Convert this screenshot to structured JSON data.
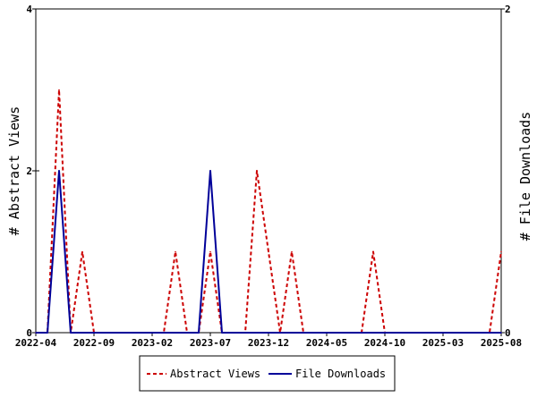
{
  "chart_data": {
    "type": "line",
    "x_ticks": [
      "2022-04",
      "2022-09",
      "2023-02",
      "2023-07",
      "2023-12",
      "2024-05",
      "2024-10",
      "2025-03",
      "2025-08"
    ],
    "x_range": [
      "2022-04",
      "2025-08"
    ],
    "y_left": {
      "label": "# Abstract Views",
      "range": [
        0,
        4
      ],
      "ticks": [
        "0",
        "2",
        "4"
      ]
    },
    "y_right": {
      "label": "# File Downloads",
      "range": [
        0,
        2
      ],
      "ticks": [
        "0",
        "2"
      ]
    },
    "series": [
      {
        "name": "Abstract Views",
        "axis": "left",
        "color": "#cc0000",
        "style": "dashed",
        "points": [
          [
            "2022-04",
            0
          ],
          [
            "2022-05",
            0
          ],
          [
            "2022-06",
            3
          ],
          [
            "2022-07",
            0
          ],
          [
            "2022-08",
            1
          ],
          [
            "2022-09",
            0
          ],
          [
            "2022-10",
            0
          ],
          [
            "2022-11",
            0
          ],
          [
            "2022-12",
            0
          ],
          [
            "2023-01",
            0
          ],
          [
            "2023-02",
            0
          ],
          [
            "2023-03",
            0
          ],
          [
            "2023-04",
            1
          ],
          [
            "2023-05",
            0
          ],
          [
            "2023-06",
            0
          ],
          [
            "2023-07",
            1
          ],
          [
            "2023-08",
            0
          ],
          [
            "2023-09",
            0
          ],
          [
            "2023-10",
            0
          ],
          [
            "2023-11",
            2
          ],
          [
            "2023-12",
            1
          ],
          [
            "2024-01",
            0
          ],
          [
            "2024-02",
            1
          ],
          [
            "2024-03",
            0
          ],
          [
            "2024-04",
            0
          ],
          [
            "2024-05",
            0
          ],
          [
            "2024-06",
            0
          ],
          [
            "2024-07",
            0
          ],
          [
            "2024-08",
            0
          ],
          [
            "2024-09",
            1
          ],
          [
            "2024-10",
            0
          ],
          [
            "2024-11",
            0
          ],
          [
            "2024-12",
            0
          ],
          [
            "2025-01",
            0
          ],
          [
            "2025-02",
            0
          ],
          [
            "2025-03",
            0
          ],
          [
            "2025-04",
            0
          ],
          [
            "2025-05",
            0
          ],
          [
            "2025-06",
            0
          ],
          [
            "2025-07",
            0
          ],
          [
            "2025-08",
            1
          ]
        ]
      },
      {
        "name": "File Downloads",
        "axis": "right",
        "color": "#000099",
        "style": "solid",
        "points": [
          [
            "2022-04",
            0
          ],
          [
            "2022-05",
            0
          ],
          [
            "2022-06",
            1
          ],
          [
            "2022-07",
            0
          ],
          [
            "2022-08",
            0
          ],
          [
            "2022-09",
            0
          ],
          [
            "2022-10",
            0
          ],
          [
            "2022-11",
            0
          ],
          [
            "2022-12",
            0
          ],
          [
            "2023-01",
            0
          ],
          [
            "2023-02",
            0
          ],
          [
            "2023-03",
            0
          ],
          [
            "2023-04",
            0
          ],
          [
            "2023-05",
            0
          ],
          [
            "2023-06",
            0
          ],
          [
            "2023-07",
            1
          ],
          [
            "2023-08",
            0
          ],
          [
            "2023-09",
            0
          ],
          [
            "2023-10",
            0
          ],
          [
            "2023-11",
            0
          ],
          [
            "2023-12",
            0
          ],
          [
            "2024-01",
            0
          ],
          [
            "2024-02",
            0
          ],
          [
            "2024-03",
            0
          ],
          [
            "2024-04",
            0
          ],
          [
            "2024-05",
            0
          ],
          [
            "2024-06",
            0
          ],
          [
            "2024-07",
            0
          ],
          [
            "2024-08",
            0
          ],
          [
            "2024-09",
            0
          ],
          [
            "2024-10",
            0
          ],
          [
            "2024-11",
            0
          ],
          [
            "2024-12",
            0
          ],
          [
            "2025-01",
            0
          ],
          [
            "2025-02",
            0
          ],
          [
            "2025-03",
            0
          ],
          [
            "2025-04",
            0
          ],
          [
            "2025-05",
            0
          ],
          [
            "2025-06",
            0
          ],
          [
            "2025-07",
            0
          ],
          [
            "2025-08",
            0
          ]
        ]
      }
    ],
    "grid": false,
    "legend_placement": "bottom-center"
  }
}
